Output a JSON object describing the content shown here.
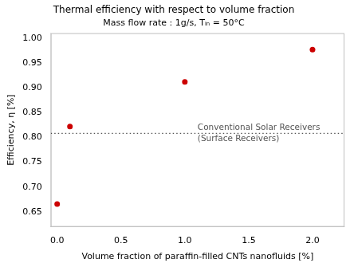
{
  "chart_data": {
    "type": "scatter",
    "title": "Thermal efficiency with respect to volume fraction",
    "subtitle": "Mass flow rate : 1g/s, Tᵢₙ = 50°C",
    "x_label": "Volume fraction of paraffin-filled CNTs nanofluids [%]",
    "y_label": "Efficiency, η [%]",
    "x": [
      0.0,
      0.1,
      1.0,
      2.0
    ],
    "values": [
      0.666,
      0.822,
      0.912,
      0.977
    ],
    "color": "#cc0000",
    "marker": "circle",
    "hline": {
      "y": 0.808,
      "label": [
        "Conventional Solar Receivers",
        "(Surface Receivers)"
      ],
      "color": "#555555",
      "line_style": "dotted"
    },
    "xlim": [
      -0.05,
      2.25
    ],
    "ylim": [
      0.62,
      1.01
    ],
    "xticks": [
      {
        "value": 0.0,
        "label": "0.0"
      },
      0.5,
      {
        "value": 1.0,
        "label": "1.0"
      },
      1.5,
      {
        "value": 2.0,
        "label": "2.0"
      }
    ],
    "yticks": [
      0.65,
      {
        "value": 0.7,
        "label": "0.70"
      },
      0.75,
      {
        "value": 0.8,
        "label": "0.80"
      },
      0.85,
      {
        "value": 0.9,
        "label": "0.90"
      },
      0.95,
      {
        "value": 1.0,
        "label": "1.00"
      }
    ],
    "grid": false
  }
}
